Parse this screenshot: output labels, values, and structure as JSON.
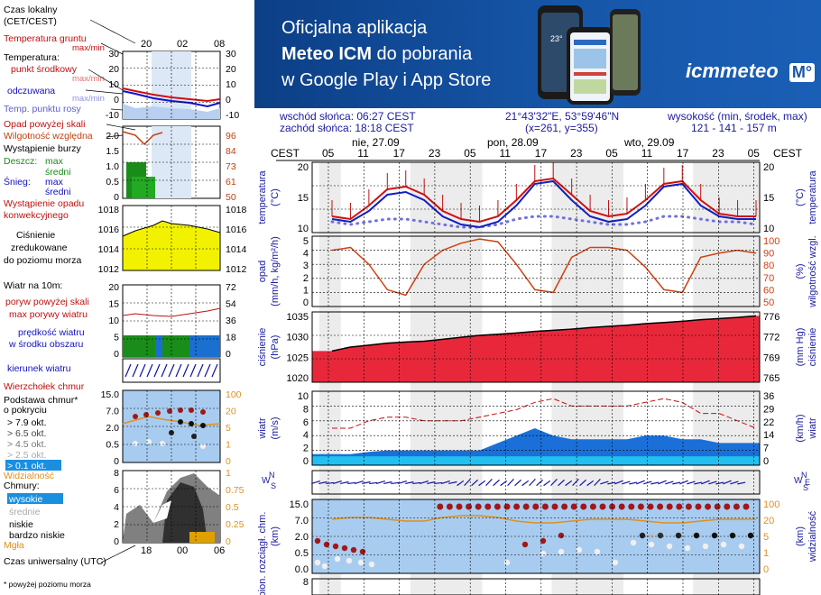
{
  "banner": {
    "line1": "Oficjalna aplikacja",
    "line2_bold": "Meteo ICM",
    "line2_rest": " do pobrania",
    "line3": "w Google Play i App Store",
    "logo": "icmmeteo",
    "logo_badge": "M°",
    "phone_temp": "23°"
  },
  "info": {
    "sunrise": "wschód słońca: 06:27 CEST",
    "sunset": "zachód słońca: 18:18 CEST",
    "coords": "21°43'32\"E, 53°59'46\"N",
    "grid": "(x=261, y=355)",
    "elev_label": "wysokość (min, środek, max)",
    "elev_values": "121 - 141 - 157 m"
  },
  "legend": {
    "local_time": "Czas lokalny\n(CET/CEST)",
    "local_ticks": [
      "20",
      "02",
      "08"
    ],
    "utc_label": "Czas uniwersalny (UTC)",
    "utc_ticks": [
      "18",
      "00",
      "06"
    ],
    "footnote": "* powyżej poziomu morza",
    "temp": {
      "ground": "Temperatura gruntu",
      "ground_mm": "max/min",
      "temp_title": "Temperatura:",
      "mid": "punkt środkowy",
      "mm": "max/min",
      "feel": "odczuwana",
      "feel_mm": "max/min",
      "dew": "Temp. punktu rosy",
      "ticks": [
        "30",
        "20",
        "10",
        "0",
        "-10"
      ]
    },
    "precip": {
      "above": "Opad powyżej skali",
      "hum": "Wilgotność względna",
      "storm": "Wystąpienie burzy",
      "rain": "Deszcz:",
      "rain_max": "max",
      "rain_mean": "średni",
      "snow": "Śnieg:",
      "snow_max": "max",
      "snow_mean": "średni",
      "occur": "Wystąpienie opadu",
      "conv": "konwekcyjnego",
      "ticks_l": [
        "2.0",
        "1.5",
        "1.0",
        "0.5",
        "0"
      ],
      "ticks_r": [
        "96",
        "84",
        "73",
        "61",
        "50"
      ]
    },
    "pressure": {
      "label1": "Ciśnienie",
      "label2": "zredukowane",
      "label3": "do poziomu morza",
      "ticks": [
        "1018",
        "1016",
        "1014",
        "1012"
      ]
    },
    "wind": {
      "title": "Wiatr na 10m:",
      "gust_above": "poryw powyżej skali",
      "gust_max": "max porywy wiatru",
      "speed": "prędkość wiatru",
      "speed2": "w środku obszaru",
      "ticks_l": [
        "20",
        "15",
        "10",
        "5",
        "0"
      ],
      "ticks_r": [
        "72",
        "54",
        "36",
        "18",
        "0"
      ],
      "dir": "kierunek wiatru"
    },
    "clouds": {
      "top": "Wierzchołek chmur",
      "base1": "Podstawa chmur*",
      "base2": "o pokryciu",
      "o79": "> 7.9 okt.",
      "o65": "> 6.5 okt.",
      "o45": "> 4.5 okt.",
      "o25": "> 2.5 okt.",
      "o01": "> 0.1 okt.",
      "vis": "Widzialność",
      "ticks_l": [
        "15.0",
        "7.0",
        "2.0",
        "0.5",
        "0"
      ],
      "ticks_r": [
        "100",
        "20",
        "5",
        "1",
        "0"
      ]
    },
    "cloud_cover": {
      "title": "Chmury:",
      "high": "wysokie",
      "mid": "średnie",
      "low": "niskie",
      "vlow": "bardzo niskie",
      "fog": "Mgła",
      "ticks_l": [
        "8",
        "6",
        "4",
        "2",
        "0"
      ],
      "ticks_r": [
        "1",
        "0.75",
        "0.5",
        "0.25",
        "0"
      ]
    }
  },
  "main": {
    "tz_label": "CEST",
    "days": [
      "nie, 27.09",
      "pon, 28.09",
      "wto, 29.09"
    ],
    "hours": [
      "05",
      "11",
      "17",
      "23",
      "05",
      "11",
      "17",
      "23",
      "05",
      "11",
      "17",
      "23",
      "05"
    ],
    "panels": {
      "temp": {
        "ylabel_l": "temperatura",
        "unit_l": "(°C)",
        "ylabel_r": "temperatura",
        "unit_r": "(°C)",
        "ticks": [
          "20",
          "15",
          "10"
        ]
      },
      "precip": {
        "ylabel_l": "opad",
        "unit_l": "(mm/h, kg/m²/h)",
        "ylabel_r": "wilgotność wzgl.",
        "unit_r": "(%)",
        "ticks_l": [
          "5",
          "4",
          "3",
          "2",
          "1",
          "0"
        ],
        "ticks_r": [
          "100",
          "90",
          "80",
          "70",
          "60",
          "50"
        ]
      },
      "pressure": {
        "ylabel_l": "ciśnienie",
        "unit_l": "(hPa)",
        "ylabel_r": "ciśnienie",
        "unit_r": "(mm Hg)",
        "ticks_l": [
          "1035",
          "1030",
          "1025",
          "1020"
        ],
        "ticks_r": [
          "776",
          "772",
          "769",
          "765"
        ]
      },
      "wind": {
        "ylabel_l": "wiatr",
        "unit_l": "(m/s)",
        "ylabel_r": "wiatr",
        "unit_r": "(km/h)",
        "ticks_l": [
          "10",
          "8",
          "6",
          "4",
          "2",
          "0"
        ],
        "ticks_r": [
          "36",
          "29",
          "22",
          "14",
          "7",
          "0"
        ]
      },
      "clouds": {
        "ylabel_l": "pion. rozciągł. chm.",
        "unit_l": "(km)",
        "ylabel_r": "widzialność",
        "unit_r": "(km)",
        "ticks_l": [
          "15.0",
          "7.0",
          "2.0",
          "0.5",
          "0.0"
        ],
        "ticks_r": [
          "100",
          "20",
          "5",
          "1",
          "0"
        ]
      },
      "cover": {
        "ticks": [
          "8"
        ]
      }
    },
    "compass": {
      "w": "W",
      "n": "N",
      "e": "E",
      "s": "S"
    }
  },
  "chart_data": [
    {
      "type": "line",
      "series": [
        {
          "name": "temperatura",
          "values": [
            11,
            10.5,
            13,
            16,
            16.5,
            15,
            12,
            10.5,
            10,
            11,
            14,
            17.5,
            18,
            15,
            12,
            11,
            11.5,
            14,
            17,
            17.5,
            14,
            11.5,
            11,
            11
          ]
        },
        {
          "name": "odczuwana",
          "values": [
            10.5,
            10,
            12,
            15,
            15.5,
            14,
            11,
            9.5,
            9,
            10,
            13,
            17,
            17.5,
            14,
            11,
            10,
            10.5,
            13,
            16.5,
            17,
            13,
            11,
            10.5,
            10.5
          ]
        },
        {
          "name": "punkt rosy",
          "values": [
            10,
            9.5,
            10,
            10.5,
            10.5,
            10,
            9.5,
            9,
            9,
            9.5,
            10.5,
            11,
            11,
            10.5,
            10,
            9.5,
            9.5,
            10,
            11,
            11,
            10.5,
            10,
            10,
            9.5
          ]
        }
      ],
      "ylim": [
        8,
        21
      ]
    },
    {
      "type": "line",
      "series": [
        {
          "name": "wilgotność wzgl.",
          "values": [
            90,
            92,
            80,
            62,
            58,
            80,
            90,
            95,
            98,
            96,
            80,
            62,
            60,
            85,
            92,
            92,
            90,
            78,
            62,
            60,
            85,
            88,
            90,
            88
          ]
        }
      ],
      "ylim": [
        50,
        100
      ]
    },
    {
      "type": "area",
      "series": [
        {
          "name": "ciśnienie",
          "values": [
            1026,
            1027,
            1027.5,
            1028,
            1028.3,
            1028.5,
            1029,
            1029.5,
            1030,
            1030.3,
            1030.6,
            1031,
            1031.3,
            1031.6,
            1032,
            1032.3,
            1032.6,
            1033,
            1033.3,
            1033.6,
            1034,
            1034.3,
            1034.6,
            1035
          ]
        }
      ],
      "ylim": [
        1018,
        1036
      ]
    },
    {
      "type": "area",
      "series": [
        {
          "name": "prędkość wiatru",
          "values": [
            1.5,
            1.5,
            1.8,
            2,
            2,
            2,
            2,
            2,
            2,
            3,
            4,
            5,
            4,
            3.5,
            3.5,
            3.5,
            3.5,
            4,
            4,
            3.5,
            3.5,
            3,
            3,
            3
          ]
        },
        {
          "name": "max porywy wiatru",
          "values": [
            5,
            5,
            6,
            6.5,
            6.5,
            6,
            6,
            6,
            6.5,
            7,
            7.5,
            8.5,
            9,
            8,
            8,
            8,
            8,
            8.5,
            9,
            8.5,
            7,
            7,
            6,
            5
          ]
        }
      ],
      "ylim": [
        0,
        10
      ]
    }
  ]
}
